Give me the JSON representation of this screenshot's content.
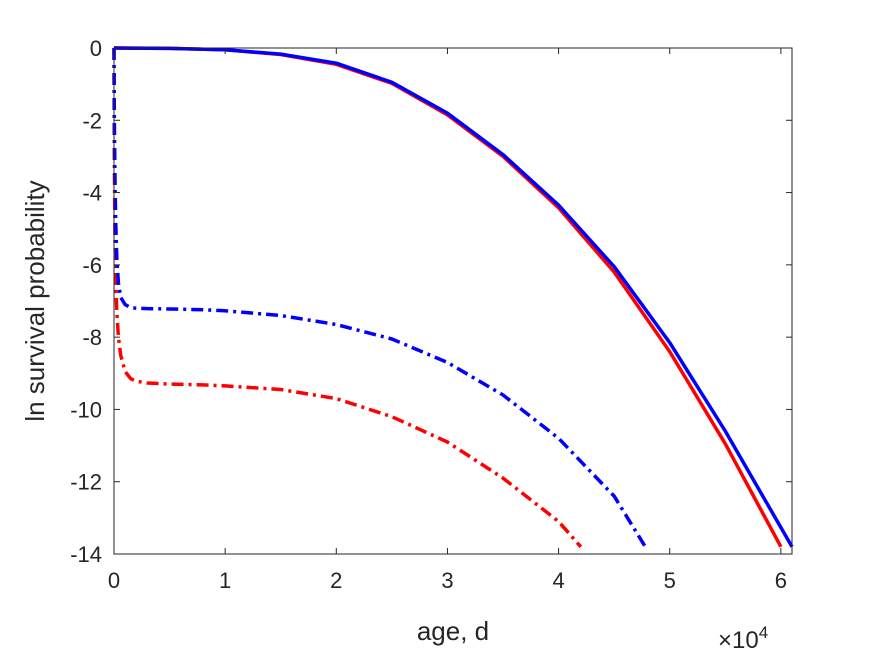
{
  "chart_data": {
    "type": "line",
    "xlabel": "age, d",
    "ylabel": "ln survival probability",
    "x_exponent": {
      "base": "×10",
      "power": "4"
    },
    "xlim": [
      0,
      61000
    ],
    "ylim": [
      -14,
      0
    ],
    "xticks": [
      0,
      10000,
      20000,
      30000,
      40000,
      50000,
      60000
    ],
    "xtick_labels": [
      "0",
      "1",
      "2",
      "3",
      "4",
      "5",
      "6"
    ],
    "yticks": [
      0,
      -2,
      -4,
      -6,
      -8,
      -10,
      -12,
      -14
    ],
    "ytick_labels": [
      "0",
      "-2",
      "-4",
      "-6",
      "-8",
      "-10",
      "-12",
      "-14"
    ],
    "grid": false,
    "series": [
      {
        "color": "#ff0000",
        "style": "solid",
        "x": [
          0,
          5000,
          10000,
          15000,
          20000,
          25000,
          30000,
          35000,
          40000,
          45000,
          50000,
          55000,
          60000
        ],
        "y": [
          0,
          -0.01,
          -0.05,
          -0.18,
          -0.45,
          -0.98,
          -1.85,
          -3.0,
          -4.42,
          -6.2,
          -8.4,
          -10.95,
          -13.8
        ]
      },
      {
        "color": "#0000ff",
        "style": "solid",
        "x": [
          0,
          5000,
          10000,
          15000,
          20000,
          25000,
          30000,
          35000,
          40000,
          45000,
          50000,
          55000,
          61000
        ],
        "y": [
          0,
          -0.01,
          -0.05,
          -0.17,
          -0.42,
          -0.95,
          -1.8,
          -2.95,
          -4.35,
          -6.05,
          -8.15,
          -10.6,
          -13.8
        ]
      },
      {
        "color": "#ff0000",
        "style": "dashdot",
        "x": [
          0,
          30,
          80,
          150,
          250,
          400,
          600,
          1000,
          1500,
          2000,
          3000,
          5000,
          8000,
          10000,
          15000,
          20000,
          25000,
          30000,
          35000,
          40000,
          42000
        ],
        "y": [
          0,
          -3,
          -5.2,
          -6.4,
          -7.3,
          -8.0,
          -8.5,
          -8.95,
          -9.15,
          -9.22,
          -9.27,
          -9.3,
          -9.32,
          -9.35,
          -9.45,
          -9.7,
          -10.2,
          -10.9,
          -11.9,
          -13.1,
          -13.8
        ]
      },
      {
        "color": "#0000ff",
        "style": "dashdot",
        "x": [
          0,
          30,
          80,
          150,
          250,
          400,
          600,
          1000,
          1500,
          2000,
          3000,
          5000,
          8000,
          10000,
          15000,
          20000,
          25000,
          30000,
          35000,
          40000,
          45000,
          47800
        ],
        "y": [
          0,
          -1.8,
          -3.5,
          -4.8,
          -5.8,
          -6.5,
          -6.9,
          -7.1,
          -7.18,
          -7.2,
          -7.21,
          -7.22,
          -7.24,
          -7.27,
          -7.4,
          -7.65,
          -8.05,
          -8.7,
          -9.6,
          -10.8,
          -12.4,
          -13.8
        ]
      }
    ]
  }
}
